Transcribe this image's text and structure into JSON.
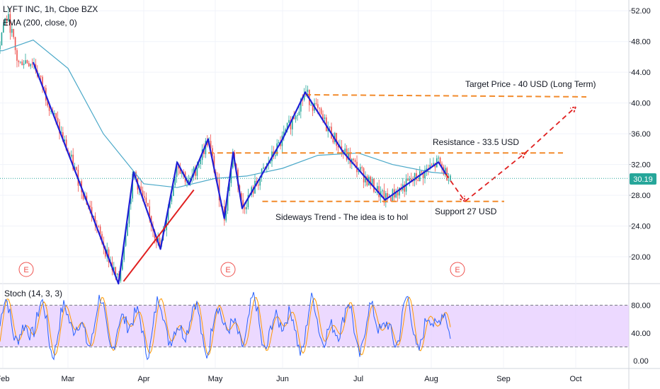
{
  "header": {
    "symbol_line": "LYFT INC, 1h, Cboe BZX",
    "indicator_line": "EMA (200, close, 0)",
    "stoch_line": "Stoch (14, 3, 3)"
  },
  "colors": {
    "candle_up": "#26a69a",
    "candle_down": "#ef5350",
    "ema": "#4aa8c8",
    "pattern": "#1f1fd6",
    "trendline": "#e02020",
    "levels": "#f28b2c",
    "projection": "#e02020",
    "stoch_band": "#e6ccff",
    "stoch_k": "#2962ff",
    "stoch_d": "#ff9800",
    "price_badge": "#26a69a"
  },
  "chart_data": [
    {
      "type": "line",
      "title": "LYFT INC, 1h, Cboe BZX",
      "x_ticks": [
        "Feb",
        "Mar",
        "Apr",
        "May",
        "Jun",
        "Jul",
        "Aug",
        "Sep",
        "Oct"
      ],
      "y_ticks": [
        20,
        24,
        28,
        32,
        36,
        40,
        44,
        48,
        52
      ],
      "ylim": [
        16.6,
        53.4
      ],
      "last_price": "30.19",
      "series": [
        {
          "name": "EMA (200, close, 0)",
          "x": [
            "Feb 1",
            "Feb 15",
            "Mar 1",
            "Mar 15",
            "Apr 1",
            "Apr 15",
            "May 1",
            "May 15",
            "Jun 1",
            "Jun 15",
            "Jul 1",
            "Jul 15",
            "Aug 1",
            "Aug 8"
          ],
          "values": [
            46.8,
            48.2,
            44.5,
            36.0,
            29.5,
            29.0,
            30.2,
            30.5,
            31.5,
            33.2,
            33.5,
            32.0,
            31.0,
            30.8
          ]
        },
        {
          "name": "Price pattern",
          "x": [
            "Feb 15",
            "Mar 21",
            "Mar 27",
            "Apr 8",
            "Apr 15",
            "Apr 20",
            "Apr 28",
            "May 5",
            "May 9",
            "May 13",
            "Jun 1",
            "Jun 10",
            "Jun 25",
            "Jul 12",
            "Aug 4",
            "Aug 7"
          ],
          "values": [
            45.3,
            16.5,
            31.0,
            21.0,
            32.3,
            29.4,
            35.3,
            25.0,
            33.6,
            26.3,
            35.3,
            41.4,
            33.6,
            27.4,
            32.3,
            30.8
          ]
        }
      ],
      "levels": [
        {
          "label": "Target Price - 40 USD (Long Term)",
          "value": 40.8
        },
        {
          "label": "Resistance - 33.5 USD",
          "value": 33.5
        },
        {
          "label": "Support 27 USD",
          "value": 27.2
        }
      ],
      "annotations": [
        "Sideways Trend -  The idea is to hol"
      ],
      "earnings_markers": [
        "E",
        "E",
        "E"
      ]
    },
    {
      "type": "line",
      "title": "Stoch (14, 3, 3)",
      "y_ticks": [
        "0.00",
        "40.00",
        "80.00"
      ],
      "ylim": [
        -10,
        110
      ],
      "band": [
        20,
        80
      ]
    }
  ]
}
